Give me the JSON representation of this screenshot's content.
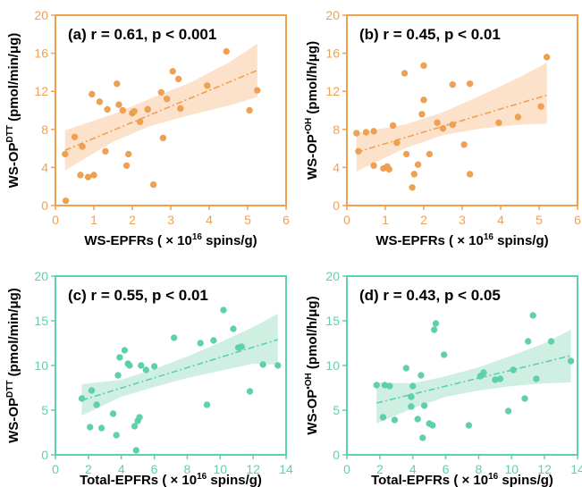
{
  "figure": {
    "colors": {
      "orange": "#f0a050",
      "orange_band": "#fbdcc2",
      "teal": "#5cd2ab",
      "teal_band": "#c6ecdd",
      "tick_text": "#000000",
      "axis_text": "#000000"
    }
  },
  "chart_data": [
    {
      "type": "scatter",
      "panel": "a",
      "annotation": "(a) r = 0.61, p < 0.001",
      "xlabel_prefix": "WS-EPFRs ( × 10",
      "xlabel_exp": "16",
      "xlabel_suffix": " spins/g)",
      "ylabel_prefix": "WS-OP",
      "ylabel_sup": "DTT",
      "ylabel_suffix": " (pmol/min/μg)",
      "xlim": [
        0,
        6
      ],
      "ylim": [
        0,
        20
      ],
      "xticks": [
        "0",
        "1",
        "2",
        "3",
        "4",
        "5",
        "6"
      ],
      "yticks": [
        "0",
        "4",
        "8",
        "12",
        "16",
        "20"
      ],
      "xtick_values": [
        0,
        1,
        2,
        3,
        4,
        5,
        6
      ],
      "ytick_values": [
        0,
        4,
        8,
        12,
        16,
        20
      ],
      "color": "orange",
      "points": [
        [
          0.25,
          5.4
        ],
        [
          0.27,
          0.5
        ],
        [
          0.5,
          7.2
        ],
        [
          0.65,
          3.2
        ],
        [
          0.7,
          6.2
        ],
        [
          0.85,
          3.0
        ],
        [
          0.95,
          11.7
        ],
        [
          1.0,
          3.2
        ],
        [
          1.15,
          10.9
        ],
        [
          1.3,
          5.7
        ],
        [
          1.35,
          10.1
        ],
        [
          1.6,
          12.8
        ],
        [
          1.65,
          10.6
        ],
        [
          1.75,
          10.0
        ],
        [
          1.85,
          4.2
        ],
        [
          1.9,
          5.4
        ],
        [
          2.0,
          9.7
        ],
        [
          2.05,
          9.9
        ],
        [
          2.2,
          8.8
        ],
        [
          2.4,
          10.1
        ],
        [
          2.55,
          2.2
        ],
        [
          2.75,
          11.9
        ],
        [
          2.8,
          7.1
        ],
        [
          2.9,
          11.2
        ],
        [
          3.05,
          14.1
        ],
        [
          3.2,
          13.3
        ],
        [
          3.25,
          10.2
        ],
        [
          3.95,
          12.6
        ],
        [
          4.45,
          16.2
        ],
        [
          5.05,
          10.0
        ],
        [
          5.25,
          12.1
        ]
      ],
      "fit": [
        [
          0.25,
          5.8
        ],
        [
          5.25,
          14.2
        ]
      ],
      "band_upper": [
        [
          0.25,
          7.9
        ],
        [
          1.5,
          9.6
        ],
        [
          2.5,
          11.3
        ],
        [
          3.5,
          12.9
        ],
        [
          4.5,
          15.0
        ],
        [
          5.25,
          17.0
        ]
      ],
      "band_lower": [
        [
          0.25,
          3.7
        ],
        [
          1.5,
          6.7
        ],
        [
          2.5,
          8.4
        ],
        [
          3.5,
          9.5
        ],
        [
          4.5,
          10.5
        ],
        [
          5.25,
          11.4
        ]
      ]
    },
    {
      "type": "scatter",
      "panel": "b",
      "annotation": "(b) r = 0.45, p < 0.01",
      "xlabel_prefix": "WS-EPFRs ( × 10",
      "xlabel_exp": "16",
      "xlabel_suffix": " spins/g)",
      "ylabel_prefix": "WS-OP",
      "ylabel_sup": "•OH",
      "ylabel_suffix": " (pmol/h/μg)",
      "xlim": [
        0,
        6
      ],
      "ylim": [
        0,
        20
      ],
      "xticks": [
        "0",
        "1",
        "2",
        "3",
        "4",
        "5",
        "6"
      ],
      "yticks": [
        "0",
        "4",
        "8",
        "12",
        "16",
        "20"
      ],
      "xtick_values": [
        0,
        1,
        2,
        3,
        4,
        5,
        6
      ],
      "ytick_values": [
        0,
        4,
        8,
        12,
        16,
        20
      ],
      "color": "orange",
      "points": [
        [
          0.25,
          7.6
        ],
        [
          0.3,
          5.7
        ],
        [
          0.5,
          7.7
        ],
        [
          0.7,
          7.8
        ],
        [
          0.7,
          4.2
        ],
        [
          0.95,
          3.9
        ],
        [
          1.05,
          4.1
        ],
        [
          1.1,
          3.8
        ],
        [
          1.2,
          8.4
        ],
        [
          1.3,
          6.6
        ],
        [
          1.5,
          13.9
        ],
        [
          1.55,
          5.4
        ],
        [
          1.7,
          1.9
        ],
        [
          1.75,
          3.3
        ],
        [
          1.85,
          4.3
        ],
        [
          1.95,
          9.6
        ],
        [
          2.0,
          11.1
        ],
        [
          2.0,
          14.7
        ],
        [
          2.15,
          5.4
        ],
        [
          2.35,
          8.7
        ],
        [
          2.5,
          8.1
        ],
        [
          2.75,
          12.7
        ],
        [
          2.75,
          8.5
        ],
        [
          3.05,
          6.4
        ],
        [
          3.2,
          12.8
        ],
        [
          3.2,
          3.3
        ],
        [
          3.95,
          8.7
        ],
        [
          4.45,
          9.3
        ],
        [
          5.05,
          10.4
        ],
        [
          5.2,
          15.6
        ]
      ],
      "fit": [
        [
          0.25,
          5.6
        ],
        [
          5.2,
          11.6
        ]
      ],
      "band_upper": [
        [
          0.25,
          7.6
        ],
        [
          1.5,
          8.5
        ],
        [
          2.5,
          9.8
        ],
        [
          3.5,
          11.6
        ],
        [
          4.5,
          13.5
        ],
        [
          5.2,
          15.0
        ]
      ],
      "band_lower": [
        [
          0.25,
          3.6
        ],
        [
          1.5,
          6.0
        ],
        [
          2.5,
          7.4
        ],
        [
          3.5,
          8.1
        ],
        [
          4.5,
          8.5
        ],
        [
          5.2,
          8.6
        ]
      ]
    },
    {
      "type": "scatter",
      "panel": "c",
      "annotation": "(c) r = 0.55, p < 0.01",
      "xlabel_prefix": "Total-EPFRs ( × 10",
      "xlabel_exp": "16",
      "xlabel_suffix": " spins/g)",
      "ylabel_prefix": "WS-OP",
      "ylabel_sup": "DTT",
      "ylabel_suffix": " (pmol/min/μg)",
      "xlim": [
        0,
        14
      ],
      "ylim": [
        0,
        20
      ],
      "xticks": [
        "0",
        "2",
        "4",
        "6",
        "8",
        "10",
        "12",
        "14"
      ],
      "yticks": [
        "0",
        "5",
        "10",
        "15",
        "20"
      ],
      "xtick_values": [
        0,
        2,
        4,
        6,
        8,
        10,
        12,
        14
      ],
      "ytick_values": [
        0,
        5,
        10,
        15,
        20
      ],
      "color": "teal",
      "points": [
        [
          1.6,
          6.3
        ],
        [
          2.1,
          3.1
        ],
        [
          2.2,
          7.2
        ],
        [
          2.5,
          5.6
        ],
        [
          2.8,
          3.0
        ],
        [
          3.5,
          4.6
        ],
        [
          3.7,
          2.2
        ],
        [
          3.8,
          8.9
        ],
        [
          3.9,
          10.9
        ],
        [
          4.2,
          11.7
        ],
        [
          4.4,
          10.2
        ],
        [
          4.5,
          10.0
        ],
        [
          4.8,
          3.2
        ],
        [
          4.9,
          0.5
        ],
        [
          5.0,
          3.8
        ],
        [
          5.1,
          4.2
        ],
        [
          5.2,
          10.0
        ],
        [
          5.5,
          9.5
        ],
        [
          6.0,
          9.9
        ],
        [
          7.2,
          13.1
        ],
        [
          8.8,
          12.5
        ],
        [
          9.2,
          5.6
        ],
        [
          9.6,
          12.8
        ],
        [
          10.2,
          16.2
        ],
        [
          10.8,
          14.1
        ],
        [
          11.1,
          12.0
        ],
        [
          11.3,
          12.1
        ],
        [
          11.8,
          7.1
        ],
        [
          12.6,
          10.1
        ],
        [
          13.5,
          10.0
        ]
      ],
      "fit": [
        [
          1.6,
          6.1
        ],
        [
          13.5,
          12.9
        ]
      ],
      "band_upper": [
        [
          1.6,
          7.9
        ],
        [
          4,
          8.4
        ],
        [
          6,
          9.6
        ],
        [
          8,
          11.0
        ],
        [
          10,
          12.6
        ],
        [
          12,
          14.3
        ],
        [
          13.5,
          15.8
        ]
      ],
      "band_lower": [
        [
          1.6,
          4.4
        ],
        [
          4,
          6.5
        ],
        [
          6,
          7.6
        ],
        [
          8,
          8.6
        ],
        [
          10,
          9.4
        ],
        [
          12,
          10.2
        ],
        [
          13.5,
          10.1
        ]
      ]
    },
    {
      "type": "scatter",
      "panel": "d",
      "annotation": "(d) r = 0.43, p < 0.05",
      "xlabel_prefix": "Total-EPFRs ( × 10",
      "xlabel_exp": "16",
      "xlabel_suffix": " spins/g)",
      "ylabel_prefix": "WS-OP",
      "ylabel_sup": "•OH",
      "ylabel_suffix": " (pmol/h/μg)",
      "xlim": [
        0,
        14
      ],
      "ylim": [
        0,
        20
      ],
      "xticks": [
        "0",
        "2",
        "4",
        "6",
        "8",
        "10",
        "12",
        "14"
      ],
      "yticks": [
        "0",
        "5",
        "10",
        "15",
        "20"
      ],
      "xtick_values": [
        0,
        2,
        4,
        6,
        8,
        10,
        12,
        14
      ],
      "ytick_values": [
        0,
        5,
        10,
        15,
        20
      ],
      "color": "teal",
      "points": [
        [
          1.8,
          7.8
        ],
        [
          2.2,
          4.2
        ],
        [
          2.3,
          7.8
        ],
        [
          2.6,
          7.7
        ],
        [
          2.9,
          3.9
        ],
        [
          3.6,
          9.7
        ],
        [
          3.9,
          6.5
        ],
        [
          3.9,
          5.4
        ],
        [
          4.0,
          7.7
        ],
        [
          4.3,
          4.0
        ],
        [
          4.5,
          8.9
        ],
        [
          4.6,
          1.9
        ],
        [
          4.7,
          5.5
        ],
        [
          5.0,
          3.5
        ],
        [
          5.2,
          3.3
        ],
        [
          5.3,
          14.0
        ],
        [
          5.4,
          14.7
        ],
        [
          5.9,
          11.2
        ],
        [
          7.4,
          3.3
        ],
        [
          8.1,
          8.8
        ],
        [
          8.3,
          9.2
        ],
        [
          9.0,
          8.4
        ],
        [
          9.3,
          8.5
        ],
        [
          9.8,
          4.9
        ],
        [
          10.1,
          9.5
        ],
        [
          10.8,
          6.3
        ],
        [
          11.0,
          12.7
        ],
        [
          11.3,
          15.6
        ],
        [
          11.5,
          8.5
        ],
        [
          12.4,
          12.7
        ],
        [
          13.6,
          10.5
        ]
      ],
      "fit": [
        [
          1.8,
          5.8
        ],
        [
          13.6,
          11.1
        ]
      ],
      "band_upper": [
        [
          1.8,
          8.1
        ],
        [
          4,
          8.0
        ],
        [
          6,
          8.8
        ],
        [
          8,
          9.8
        ],
        [
          10,
          11.1
        ],
        [
          12,
          12.5
        ],
        [
          13.6,
          14.0
        ]
      ],
      "band_lower": [
        [
          1.8,
          3.5
        ],
        [
          4,
          5.2
        ],
        [
          6,
          6.5
        ],
        [
          8,
          7.2
        ],
        [
          10,
          7.7
        ],
        [
          12,
          8.0
        ],
        [
          13.6,
          8.1
        ]
      ]
    }
  ]
}
